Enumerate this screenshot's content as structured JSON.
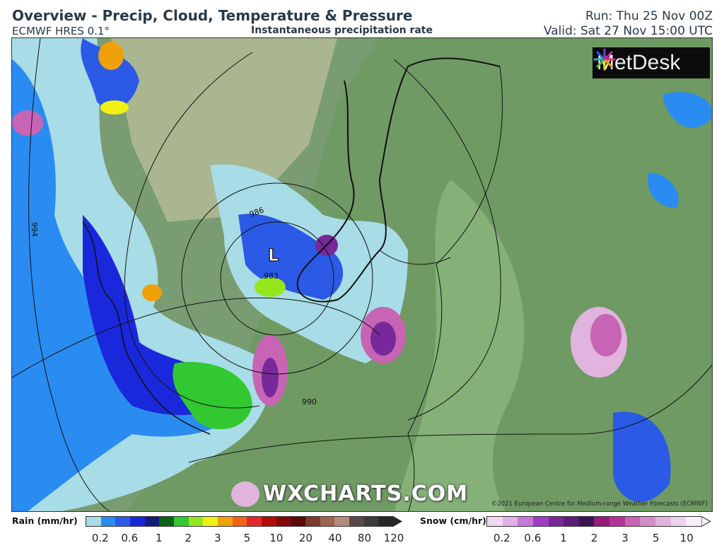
{
  "header": {
    "title": "Overview - Precip, Cloud, Temperature & Pressure",
    "model": "ECMWF HRES 0.1°",
    "subtitle": "Instantaneous precipitation rate",
    "run": "Run: Thu 25 Nov 00Z",
    "valid": "Valid: Sat 27 Nov 15:00 UTC"
  },
  "map": {
    "logo": "MetDesk",
    "watermark": "WXCHARTS.COM",
    "copyright": "©2021 European Centre for Medium-range Weather Forecasts (ECMWF)",
    "low_marker": "L",
    "low_pressure": "983",
    "isobar_labels": [
      "994",
      "986",
      "990"
    ]
  },
  "legend": {
    "rain": {
      "label": "Rain (mm/hr)",
      "ticks": [
        "0.2",
        "0.6",
        "1",
        "2",
        "3",
        "5",
        "10",
        "20",
        "40",
        "80",
        "120"
      ],
      "colors": [
        "#a8dce6",
        "#2a8cf0",
        "#2a5ae6",
        "#1a28dc",
        "#141c7c",
        "#0a6414",
        "#32c832",
        "#96e61e",
        "#f0f014",
        "#f0a00a",
        "#f06414",
        "#e62828",
        "#b40a0a",
        "#820a0a",
        "#5a0a0a",
        "#783c32",
        "#a06450",
        "#b48c78",
        "#5a4a46",
        "#3c3c3c",
        "#282828"
      ]
    },
    "snow": {
      "label": "Snow (cm/hr)",
      "ticks": [
        "0.2",
        "0.6",
        "1",
        "2",
        "3",
        "5",
        "10"
      ],
      "colors": [
        "#f0d8f0",
        "#e0b0e8",
        "#c878dc",
        "#a03cc8",
        "#78289a",
        "#5a1e78",
        "#3c1450",
        "#961e78",
        "#b4329a",
        "#c864b4",
        "#d28cc8",
        "#e0b4dc",
        "#ecd2ec",
        "#f8eef8"
      ]
    }
  }
}
